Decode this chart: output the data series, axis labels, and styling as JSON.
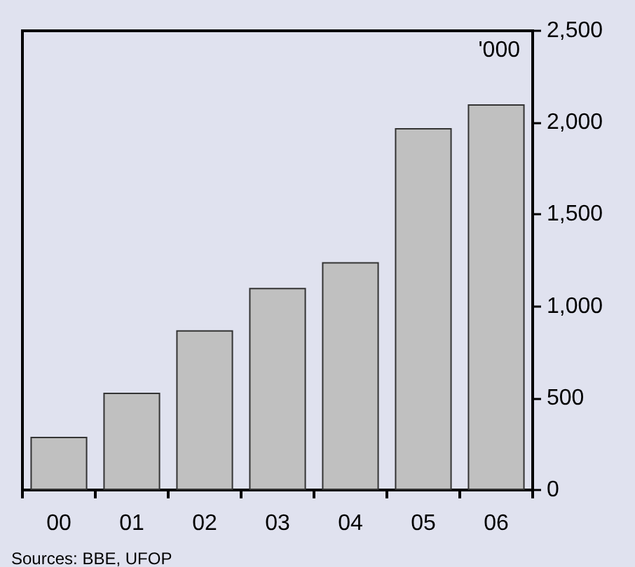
{
  "chart_data": {
    "type": "bar",
    "categories": [
      "00",
      "01",
      "02",
      "03",
      "04",
      "05",
      "06"
    ],
    "values": [
      290,
      530,
      870,
      1100,
      1240,
      1970,
      2100
    ],
    "color": "#c0c0c0",
    "ylabel": "'000",
    "ylim": [
      0,
      2500
    ],
    "yticks": [
      0,
      500,
      {
        "value": 1000,
        "label": "1,000"
      },
      {
        "value": 1500,
        "label": "1,500"
      },
      {
        "value": 2000,
        "label": "2,000"
      },
      {
        "value": 2500,
        "label": "2,500"
      }
    ],
    "grid": false,
    "annotations": [
      "Sources: BBE, UFOP"
    ]
  }
}
